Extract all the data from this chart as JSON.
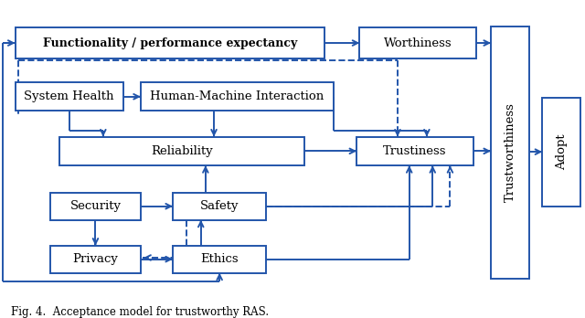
{
  "title": "Fig. 4.  Acceptance model for trustworthy RAS.",
  "bg_color": "#ffffff",
  "box_color": "#2255aa",
  "text_color": "#000000",
  "arrow_color": "#2255aa",
  "lw": 1.4,
  "boxes": {
    "func": [
      0.025,
      0.81,
      0.53,
      0.1
    ],
    "worth": [
      0.615,
      0.81,
      0.2,
      0.1
    ],
    "syshealth": [
      0.025,
      0.635,
      0.185,
      0.095
    ],
    "hmi": [
      0.24,
      0.635,
      0.33,
      0.095
    ],
    "reliab": [
      0.1,
      0.455,
      0.42,
      0.095
    ],
    "trustin": [
      0.61,
      0.455,
      0.2,
      0.095
    ],
    "security": [
      0.085,
      0.275,
      0.155,
      0.09
    ],
    "safety": [
      0.295,
      0.275,
      0.16,
      0.09
    ],
    "privacy": [
      0.085,
      0.1,
      0.155,
      0.09
    ],
    "ethics": [
      0.295,
      0.1,
      0.16,
      0.09
    ],
    "trustw": [
      0.84,
      0.08,
      0.065,
      0.835
    ],
    "adopt": [
      0.928,
      0.32,
      0.065,
      0.36
    ]
  }
}
